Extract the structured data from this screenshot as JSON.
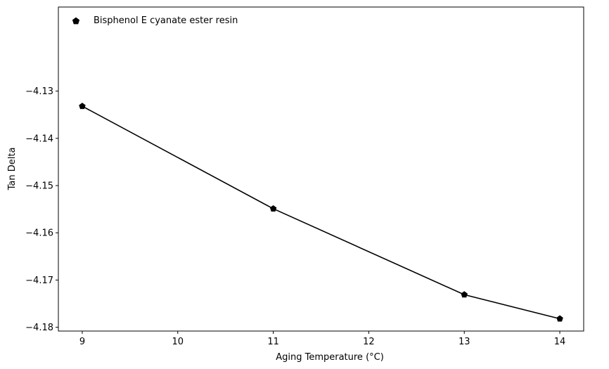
{
  "chart_data": {
    "type": "line",
    "title": "",
    "xlabel": "Aging Temperature (°C)",
    "ylabel": "Tan Delta",
    "xlim": [
      8.75,
      14.25
    ],
    "ylim": [
      -4.1808,
      -4.1122
    ],
    "xticks": [
      9,
      10,
      11,
      12,
      13,
      14
    ],
    "xtick_labels": [
      "9",
      "10",
      "11",
      "12",
      "13",
      "14"
    ],
    "yticks": [
      -4.13,
      -4.14,
      -4.15,
      -4.16,
      -4.17,
      -4.18
    ],
    "ytick_labels": [
      "−4.13",
      "−4.14",
      "−4.15",
      "−4.16",
      "−4.17",
      "−4.18"
    ],
    "grid": false,
    "legend_position": "upper-left",
    "series": [
      {
        "name": "Bisphenol E cyanate ester resin",
        "color": "#000000",
        "marker": "pentagon",
        "x": [
          9,
          11,
          13,
          14
        ],
        "y": [
          -4.1332,
          -4.1549,
          -4.1731,
          -4.1782
        ]
      }
    ]
  }
}
